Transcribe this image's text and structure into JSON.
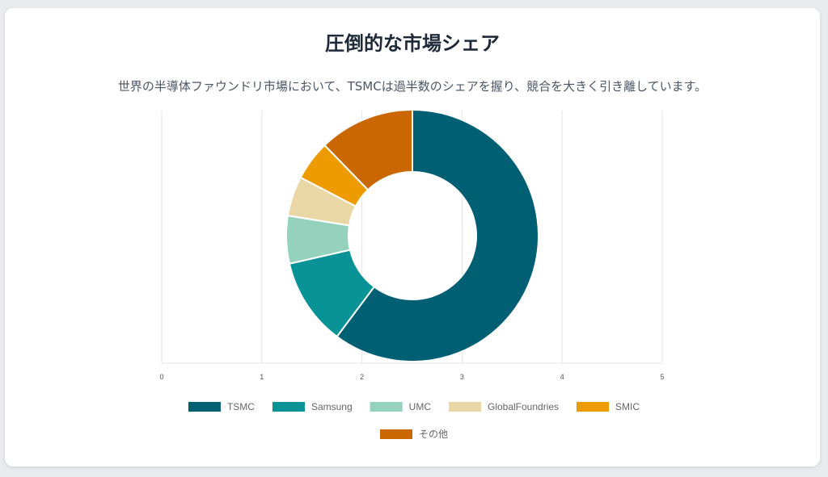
{
  "title": "圧倒的な市場シェア",
  "subtitle": "世界の半導体ファウンドリ市場において、TSMCは過半数のシェアを握り、競合を大きく引き離しています。",
  "chart_data": {
    "type": "pie",
    "donut": true,
    "categories": [
      "TSMC",
      "Samsung",
      "UMC",
      "GlobalFoundries",
      "SMIC",
      "その他"
    ],
    "values": [
      59,
      11,
      6,
      5,
      5,
      12
    ],
    "colors": [
      "#005f73",
      "#0a9396",
      "#94d2bd",
      "#e9d8a6",
      "#ee9b00",
      "#ca6702"
    ],
    "x_ticks": [
      "0",
      "1",
      "2",
      "3",
      "4",
      "5"
    ],
    "grid": true,
    "legend_position": "bottom"
  }
}
